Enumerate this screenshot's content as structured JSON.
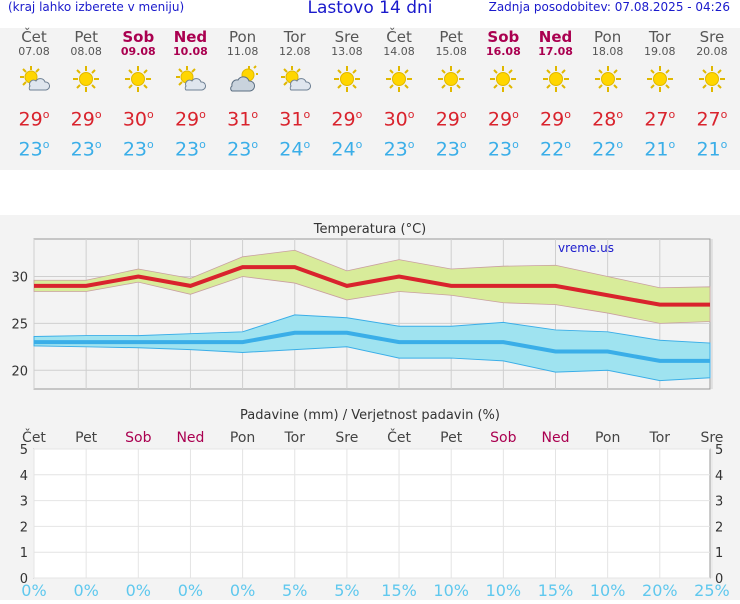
{
  "header": {
    "left_note": "(kraj lahko izberete v meniju)",
    "title": "Lastovo 14 dni",
    "updated": "Zadnja posodobitev: 07.08.2025 - 04:26"
  },
  "days": [
    {
      "name": "Čet",
      "date": "07.08",
      "weekend": false,
      "icon": "sun-cloud-icon",
      "tmax": "29",
      "tmin": "23"
    },
    {
      "name": "Pet",
      "date": "08.08",
      "weekend": false,
      "icon": "sun-icon",
      "tmax": "29",
      "tmin": "23"
    },
    {
      "name": "Sob",
      "date": "09.08",
      "weekend": true,
      "icon": "sun-icon",
      "tmax": "30",
      "tmin": "23"
    },
    {
      "name": "Ned",
      "date": "10.08",
      "weekend": true,
      "icon": "sun-cloud-icon",
      "tmax": "29",
      "tmin": "23"
    },
    {
      "name": "Pon",
      "date": "11.08",
      "weekend": false,
      "icon": "cloud-sun-icon",
      "tmax": "31",
      "tmin": "23"
    },
    {
      "name": "Tor",
      "date": "12.08",
      "weekend": false,
      "icon": "sun-cloud-icon",
      "tmax": "31",
      "tmin": "24"
    },
    {
      "name": "Sre",
      "date": "13.08",
      "weekend": false,
      "icon": "sun-icon",
      "tmax": "29",
      "tmin": "24"
    },
    {
      "name": "Čet",
      "date": "14.08",
      "weekend": false,
      "icon": "sun-icon",
      "tmax": "30",
      "tmin": "23"
    },
    {
      "name": "Pet",
      "date": "15.08",
      "weekend": false,
      "icon": "sun-icon",
      "tmax": "29",
      "tmin": "23"
    },
    {
      "name": "Sob",
      "date": "16.08",
      "weekend": true,
      "icon": "sun-icon",
      "tmax": "29",
      "tmin": "23"
    },
    {
      "name": "Ned",
      "date": "17.08",
      "weekend": true,
      "icon": "sun-icon",
      "tmax": "29",
      "tmin": "22"
    },
    {
      "name": "Pon",
      "date": "18.08",
      "weekend": false,
      "icon": "sun-icon",
      "tmax": "28",
      "tmin": "22"
    },
    {
      "name": "Tor",
      "date": "19.08",
      "weekend": false,
      "icon": "sun-icon",
      "tmax": "27",
      "tmin": "21"
    },
    {
      "name": "Sre",
      "date": "20.08",
      "weekend": false,
      "icon": "sun-icon",
      "tmax": "27",
      "tmin": "21"
    }
  ],
  "degree_symbol": "o",
  "colors": {
    "max": "#d9232d",
    "min": "#3aaee8",
    "max_band": "#d8ec9a",
    "min_band": "#9fe3f0",
    "weekend": "#aa0050",
    "brand": "#1a1acc"
  },
  "chart_data": [
    {
      "type": "line",
      "title": "Temperatura (°C)",
      "watermark": "vreme.us",
      "yticks": [
        20,
        25,
        30
      ],
      "ylim": [
        18,
        34
      ],
      "series": [
        {
          "name": "max",
          "values": [
            29,
            29,
            30,
            29,
            31,
            31,
            29,
            30,
            29,
            29,
            29,
            28,
            27,
            27
          ],
          "band_low": [
            28.4,
            28.4,
            29.4,
            28.1,
            30,
            29.3,
            27.5,
            28.4,
            28,
            27.2,
            27,
            26.1,
            25,
            25.2
          ],
          "band_high": [
            29.6,
            29.6,
            30.8,
            29.8,
            32.1,
            32.8,
            30.6,
            31.8,
            30.8,
            31.1,
            31.2,
            30,
            28.8,
            28.9
          ]
        },
        {
          "name": "min",
          "values": [
            23,
            23,
            23,
            23,
            23,
            24,
            24,
            23,
            23,
            23,
            22,
            22,
            21,
            21
          ],
          "band_low": [
            22.6,
            22.5,
            22.4,
            22.2,
            21.9,
            22.2,
            22.5,
            21.3,
            21.3,
            21,
            19.8,
            20,
            18.9,
            19.2
          ],
          "band_high": [
            23.6,
            23.7,
            23.7,
            23.9,
            24.1,
            25.9,
            25.6,
            24.7,
            24.7,
            25.1,
            24.3,
            24.1,
            23.2,
            22.9
          ]
        }
      ]
    },
    {
      "type": "bar",
      "title": "Padavine (mm) / Verjetnost padavin (%)",
      "categories": [
        "Čet",
        "Pet",
        "Sob",
        "Ned",
        "Pon",
        "Tor",
        "Sre",
        "Čet",
        "Pet",
        "Sob",
        "Ned",
        "Pon",
        "Tor",
        "Sre"
      ],
      "weekend": [
        false,
        false,
        true,
        true,
        false,
        false,
        false,
        false,
        false,
        true,
        true,
        false,
        false,
        false
      ],
      "precipitation_mm": [
        0,
        0,
        0,
        0,
        0,
        0,
        0,
        0,
        0,
        0,
        0,
        0,
        0,
        0
      ],
      "probability_labels": [
        "0%",
        "0%",
        "0%",
        "0%",
        "0%",
        "5%",
        "5%",
        "15%",
        "10%",
        "10%",
        "15%",
        "10%",
        "20%",
        "25%"
      ],
      "yticks": [
        0,
        1,
        2,
        3,
        4,
        5
      ],
      "ylim": [
        0,
        5
      ]
    }
  ]
}
